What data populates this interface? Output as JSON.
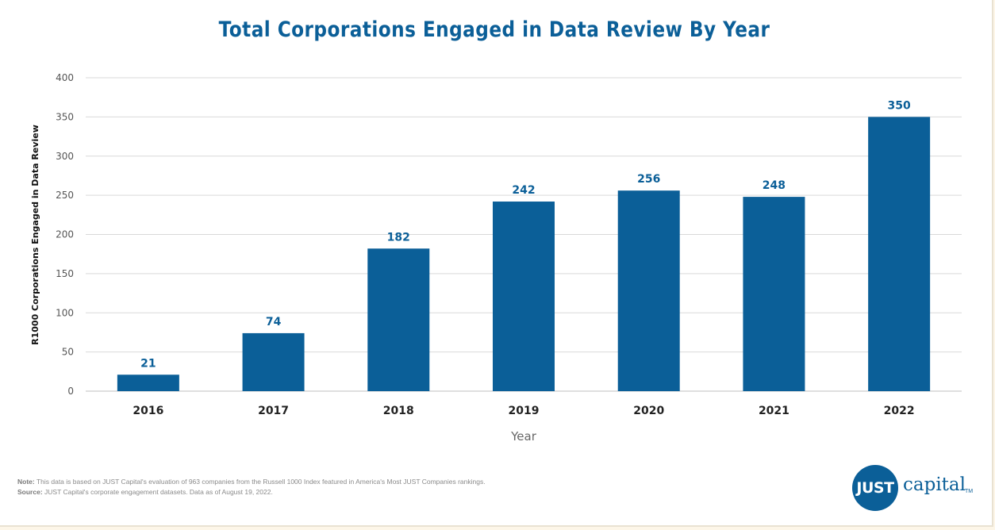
{
  "colors": {
    "bar": "#0b5f98",
    "grid": "#d9d9d9",
    "accent": "#0b5f98"
  },
  "chart_data": {
    "type": "bar",
    "title": "Total Corporations Engaged in Data Review By Year",
    "xlabel": "Year",
    "ylabel": "R1000 Corporations Engaged in Data Review",
    "categories": [
      "2016",
      "2017",
      "2018",
      "2019",
      "2020",
      "2021",
      "2022"
    ],
    "values": [
      21,
      74,
      182,
      242,
      256,
      248,
      350
    ],
    "data_labels": [
      "21",
      "74",
      "182",
      "242",
      "256",
      "248",
      "350"
    ],
    "ylim": [
      0,
      400
    ],
    "yticks": [
      0,
      50,
      100,
      150,
      200,
      250,
      300,
      350,
      400
    ],
    "grid": true,
    "legend": "none"
  },
  "footnotes": {
    "note_label": "Note:",
    "note_text": " This data is based on JUST Capital's evaluation of 963 companies from the Russell 1000 Index featured in America's Most JUST Companies rankings.",
    "source_label": "Source:",
    "source_text": " JUST Capital's corporate engagement datasets. Data as of  August 19, 2022."
  },
  "logo": {
    "mark": "JUST",
    "word": "capital",
    "tm": "TM"
  }
}
